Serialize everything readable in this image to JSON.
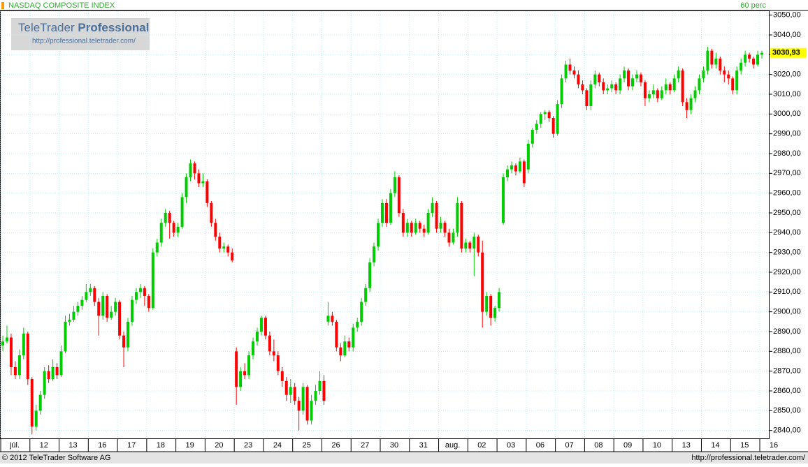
{
  "header": {
    "title": "NASDAQ COMPOSITE INDEX",
    "interval": "60 perc"
  },
  "logo": {
    "brand": "TeleTrader",
    "brand_bold": "Professional",
    "url": "http://professional.teletrader.com/"
  },
  "footer": {
    "copyright": "© 2012 TeleTrader Software AG",
    "url": "http://professional.teletrader.com/"
  },
  "chart_data": {
    "type": "candlestick",
    "up_color": "#00cc00",
    "down_color": "#ff0000",
    "grid": true,
    "grid_color": "#bfeff2",
    "ylim": [
      2836,
      3052
    ],
    "yticks": [
      {
        "value": 2840,
        "label": "2840,00"
      },
      {
        "value": 2850,
        "label": "2850,00"
      },
      {
        "value": 2860,
        "label": "2860,00"
      },
      {
        "value": 2870,
        "label": "2870,00"
      },
      {
        "value": 2880,
        "label": "2880,00"
      },
      {
        "value": 2890,
        "label": "2890,00"
      },
      {
        "value": 2900,
        "label": "2900,00"
      },
      {
        "value": 2910,
        "label": "2910,00"
      },
      {
        "value": 2920,
        "label": "2920,00"
      },
      {
        "value": 2930,
        "label": "2930,00"
      },
      {
        "value": 2940,
        "label": "2940,00"
      },
      {
        "value": 2950,
        "label": "2950,00"
      },
      {
        "value": 2960,
        "label": "2960,00"
      },
      {
        "value": 2970,
        "label": "2970,00"
      },
      {
        "value": 2980,
        "label": "2980,00"
      },
      {
        "value": 2990,
        "label": "2990,00"
      },
      {
        "value": 3000,
        "label": "3000,00"
      },
      {
        "value": 3010,
        "label": "3010,00"
      },
      {
        "value": 3020,
        "label": "3020,00"
      },
      {
        "value": 3030,
        "label": "3030,00"
      },
      {
        "value": 3040,
        "label": "3040,00"
      },
      {
        "value": 3050,
        "label": "3050,00"
      }
    ],
    "last_price": {
      "value": 3030.93,
      "label": "3030,93"
    },
    "categories": [
      "júl.",
      null,
      null,
      null,
      null,
      null,
      null,
      "12",
      null,
      null,
      null,
      null,
      null,
      null,
      "13",
      null,
      null,
      null,
      null,
      null,
      null,
      "16",
      null,
      null,
      null,
      null,
      null,
      null,
      "17",
      null,
      null,
      null,
      null,
      null,
      null,
      "18",
      null,
      null,
      null,
      null,
      null,
      null,
      "19",
      null,
      null,
      null,
      null,
      null,
      null,
      "20",
      null,
      null,
      null,
      null,
      null,
      null,
      "23",
      null,
      null,
      null,
      null,
      null,
      null,
      "24",
      null,
      null,
      null,
      null,
      null,
      null,
      "25",
      null,
      null,
      null,
      null,
      null,
      null,
      "26",
      null,
      null,
      null,
      null,
      null,
      null,
      "27",
      null,
      null,
      null,
      null,
      null,
      null,
      "30",
      null,
      null,
      null,
      null,
      null,
      null,
      "31",
      null,
      null,
      null,
      null,
      null,
      null,
      "aug.",
      null,
      null,
      null,
      null,
      null,
      null,
      "02",
      null,
      null,
      null,
      null,
      null,
      null,
      "03",
      null,
      null,
      null,
      null,
      null,
      null,
      "06",
      null,
      null,
      null,
      null,
      null,
      null,
      "07",
      null,
      null,
      null,
      null,
      null,
      null,
      "08",
      null,
      null,
      null,
      null,
      null,
      null,
      "09",
      null,
      null,
      null,
      null,
      null,
      null,
      "10",
      null,
      null,
      null,
      null,
      null,
      null,
      "13",
      null,
      null,
      null,
      null,
      null,
      null,
      "14",
      null,
      null,
      null,
      null,
      null,
      null,
      "15",
      null,
      null,
      null,
      null,
      null,
      null,
      "16"
    ],
    "ohlc": [
      [
        2883,
        2888,
        2880,
        2885
      ],
      [
        2885,
        2893,
        2884,
        2887
      ],
      [
        2887,
        2889,
        2868,
        2872
      ],
      [
        2872,
        2875,
        2866,
        2868
      ],
      [
        2868,
        2881,
        2866,
        2878
      ],
      [
        2878,
        2892,
        2876,
        2889
      ],
      [
        2889,
        2890,
        2863,
        2866
      ],
      [
        2866,
        2867,
        2838,
        2842
      ],
      [
        2842,
        2853,
        2840,
        2850
      ],
      [
        2850,
        2860,
        2848,
        2858
      ],
      [
        2858,
        2872,
        2856,
        2870
      ],
      [
        2870,
        2873,
        2864,
        2866
      ],
      [
        2866,
        2876,
        2865,
        2872
      ],
      [
        2872,
        2874,
        2866,
        2868
      ],
      [
        2868,
        2883,
        2867,
        2880
      ],
      [
        2880,
        2898,
        2879,
        2895
      ],
      [
        2895,
        2899,
        2893,
        2896
      ],
      [
        2896,
        2903,
        2895,
        2900
      ],
      [
        2900,
        2905,
        2898,
        2903
      ],
      [
        2903,
        2908,
        2901,
        2906
      ],
      [
        2906,
        2914,
        2905,
        2910
      ],
      [
        2910,
        2914,
        2908,
        2912
      ],
      [
        2912,
        2913,
        2903,
        2905
      ],
      [
        2905,
        2907,
        2888,
        2898
      ],
      [
        2898,
        2910,
        2896,
        2908
      ],
      [
        2908,
        2909,
        2895,
        2897
      ],
      [
        2897,
        2903,
        2896,
        2900
      ],
      [
        2900,
        2907,
        2898,
        2905
      ],
      [
        2905,
        2906,
        2886,
        2888
      ],
      [
        2888,
        2890,
        2872,
        2882
      ],
      [
        2882,
        2897,
        2880,
        2895
      ],
      [
        2895,
        2908,
        2893,
        2906
      ],
      [
        2906,
        2912,
        2904,
        2910
      ],
      [
        2910,
        2914,
        2907,
        2912
      ],
      [
        2912,
        2913,
        2903,
        2908
      ],
      [
        2908,
        2909,
        2900,
        2902
      ],
      [
        2902,
        2932,
        2901,
        2930
      ],
      [
        2930,
        2937,
        2928,
        2935
      ],
      [
        2935,
        2947,
        2933,
        2945
      ],
      [
        2945,
        2952,
        2943,
        2950
      ],
      [
        2950,
        2951,
        2937,
        2945
      ],
      [
        2945,
        2946,
        2938,
        2940
      ],
      [
        2940,
        2945,
        2938,
        2943
      ],
      [
        2943,
        2960,
        2942,
        2958
      ],
      [
        2958,
        2970,
        2955,
        2968
      ],
      [
        2968,
        2977,
        2966,
        2975
      ],
      [
        2975,
        2976,
        2967,
        2970
      ],
      [
        2970,
        2972,
        2963,
        2965
      ],
      [
        2965,
        2970,
        2963,
        2966
      ],
      [
        2966,
        2967,
        2953,
        2955
      ],
      [
        2955,
        2956,
        2943,
        2945
      ],
      [
        2945,
        2947,
        2936,
        2938
      ],
      [
        2938,
        2940,
        2930,
        2932
      ],
      [
        2932,
        2935,
        2930,
        2933
      ],
      [
        2933,
        2934,
        2928,
        2930
      ],
      [
        2930,
        2932,
        2925,
        2926
      ],
      [
        2880,
        2882,
        2853,
        2862
      ],
      [
        2862,
        2872,
        2860,
        2870
      ],
      [
        2870,
        2874,
        2866,
        2868
      ],
      [
        2868,
        2880,
        2866,
        2878
      ],
      [
        2878,
        2887,
        2876,
        2885
      ],
      [
        2885,
        2892,
        2883,
        2890
      ],
      [
        2890,
        2898,
        2888,
        2897
      ],
      [
        2897,
        2898,
        2886,
        2888
      ],
      [
        2888,
        2890,
        2878,
        2880
      ],
      [
        2880,
        2886,
        2875,
        2878
      ],
      [
        2878,
        2880,
        2868,
        2870
      ],
      [
        2870,
        2872,
        2862,
        2865
      ],
      [
        2865,
        2867,
        2855,
        2858
      ],
      [
        2858,
        2866,
        2854,
        2862
      ],
      [
        2862,
        2864,
        2853,
        2855
      ],
      [
        2855,
        2857,
        2840,
        2850
      ],
      [
        2850,
        2864,
        2848,
        2862
      ],
      [
        2862,
        2863,
        2843,
        2845
      ],
      [
        2845,
        2858,
        2843,
        2855
      ],
      [
        2855,
        2863,
        2853,
        2860
      ],
      [
        2860,
        2870,
        2858,
        2865
      ],
      [
        2865,
        2868,
        2853,
        2855
      ],
      [
        2895,
        2905,
        2893,
        2898
      ],
      [
        2898,
        2900,
        2893,
        2895
      ],
      [
        2895,
        2896,
        2880,
        2882
      ],
      [
        2882,
        2884,
        2875,
        2878
      ],
      [
        2878,
        2888,
        2877,
        2885
      ],
      [
        2885,
        2887,
        2880,
        2882
      ],
      [
        2882,
        2894,
        2880,
        2892
      ],
      [
        2892,
        2897,
        2890,
        2895
      ],
      [
        2895,
        2907,
        2893,
        2905
      ],
      [
        2905,
        2914,
        2903,
        2912
      ],
      [
        2912,
        2927,
        2910,
        2925
      ],
      [
        2925,
        2935,
        2923,
        2933
      ],
      [
        2933,
        2947,
        2931,
        2945
      ],
      [
        2945,
        2957,
        2943,
        2955
      ],
      [
        2955,
        2957,
        2943,
        2945
      ],
      [
        2945,
        2962,
        2944,
        2960
      ],
      [
        2960,
        2971,
        2958,
        2968
      ],
      [
        2968,
        2969,
        2948,
        2950
      ],
      [
        2950,
        2952,
        2938,
        2940
      ],
      [
        2940,
        2947,
        2938,
        2945
      ],
      [
        2945,
        2946,
        2938,
        2940
      ],
      [
        2940,
        2947,
        2939,
        2945
      ],
      [
        2945,
        2946,
        2940,
        2942
      ],
      [
        2942,
        2944,
        2938,
        2940
      ],
      [
        2940,
        2952,
        2939,
        2950
      ],
      [
        2950,
        2958,
        2948,
        2955
      ],
      [
        2955,
        2956,
        2940,
        2942
      ],
      [
        2942,
        2948,
        2940,
        2945
      ],
      [
        2945,
        2946,
        2938,
        2940
      ],
      [
        2940,
        2942,
        2933,
        2935
      ],
      [
        2935,
        2942,
        2934,
        2940
      ],
      [
        2940,
        2958,
        2938,
        2955
      ],
      [
        2955,
        2956,
        2930,
        2932
      ],
      [
        2932,
        2937,
        2930,
        2935
      ],
      [
        2935,
        2936,
        2930,
        2932
      ],
      [
        2932,
        2940,
        2918,
        2938
      ],
      [
        2938,
        2939,
        2928,
        2930
      ],
      [
        2930,
        2936,
        2892,
        2900
      ],
      [
        2900,
        2910,
        2898,
        2908
      ],
      [
        2908,
        2909,
        2893,
        2897
      ],
      [
        2897,
        2903,
        2895,
        2902
      ],
      [
        2902,
        2912,
        2900,
        2910
      ],
      [
        2945,
        2970,
        2944,
        2968
      ],
      [
        2968,
        2974,
        2966,
        2972
      ],
      [
        2972,
        2976,
        2970,
        2974
      ],
      [
        2974,
        2975,
        2969,
        2971
      ],
      [
        2971,
        2978,
        2970,
        2976
      ],
      [
        2976,
        2977,
        2963,
        2965
      ],
      [
        2972,
        2987,
        2970,
        2985
      ],
      [
        2985,
        2993,
        2983,
        2992
      ],
      [
        2992,
        2997,
        2990,
        2995
      ],
      [
        2995,
        3001,
        2993,
        3000
      ],
      [
        3000,
        3002,
        2997,
        3001
      ],
      [
        3001,
        3002,
        2996,
        2998
      ],
      [
        2998,
        2999,
        2988,
        2990
      ],
      [
        2990,
        3007,
        2989,
        3005
      ],
      [
        3005,
        3020,
        3003,
        3018
      ],
      [
        3018,
        3027,
        3016,
        3025
      ],
      [
        3025,
        3028,
        3020,
        3022
      ],
      [
        3022,
        3024,
        3018,
        3020
      ],
      [
        3020,
        3022,
        3013,
        3015
      ],
      [
        3015,
        3017,
        3010,
        3012
      ],
      [
        3012,
        3013,
        3002,
        3004
      ],
      [
        3004,
        3017,
        3002,
        3015
      ],
      [
        3015,
        3022,
        3013,
        3020
      ],
      [
        3020,
        3021,
        3014,
        3016
      ],
      [
        3016,
        3018,
        3010,
        3012
      ],
      [
        3012,
        3015,
        3010,
        3013
      ],
      [
        3013,
        3017,
        3011,
        3015
      ],
      [
        3015,
        3016,
        3010,
        3012
      ],
      [
        3012,
        3020,
        3010,
        3018
      ],
      [
        3018,
        3024,
        3016,
        3022
      ],
      [
        3022,
        3023,
        3012,
        3014
      ],
      [
        3014,
        3020,
        3012,
        3018
      ],
      [
        3018,
        3022,
        3016,
        3020
      ],
      [
        3020,
        3021,
        3014,
        3016
      ],
      [
        3016,
        3017,
        3004,
        3008
      ],
      [
        3008,
        3012,
        3006,
        3010
      ],
      [
        3010,
        3015,
        3008,
        3012
      ],
      [
        3012,
        3013,
        3006,
        3008
      ],
      [
        3008,
        3014,
        3007,
        3012
      ],
      [
        3012,
        3018,
        3010,
        3015
      ],
      [
        3015,
        3016,
        3010,
        3012
      ],
      [
        3012,
        3020,
        3011,
        3018
      ],
      [
        3018,
        3024,
        3016,
        3022
      ],
      [
        3022,
        3023,
        3004,
        3006
      ],
      [
        3006,
        3008,
        2998,
        3002
      ],
      [
        3002,
        3010,
        3000,
        3008
      ],
      [
        3008,
        3014,
        3006,
        3012
      ],
      [
        3012,
        3020,
        3010,
        3018
      ],
      [
        3018,
        3024,
        3016,
        3022
      ],
      [
        3022,
        3034,
        3020,
        3032
      ],
      [
        3032,
        3033,
        3023,
        3025
      ],
      [
        3025,
        3031,
        3023,
        3028
      ],
      [
        3028,
        3029,
        3020,
        3022
      ],
      [
        3022,
        3024,
        3016,
        3020
      ],
      [
        3020,
        3022,
        3015,
        3018
      ],
      [
        3018,
        3019,
        3010,
        3012
      ],
      [
        3012,
        3024,
        3010,
        3022
      ],
      [
        3022,
        3028,
        3020,
        3026
      ],
      [
        3026,
        3032,
        3024,
        3030
      ],
      [
        3030,
        3031,
        3026,
        3028
      ],
      [
        3028,
        3029,
        3023,
        3025
      ],
      [
        3025,
        3032,
        3024,
        3030
      ],
      [
        3030,
        3032,
        3028,
        3030.93
      ]
    ]
  }
}
